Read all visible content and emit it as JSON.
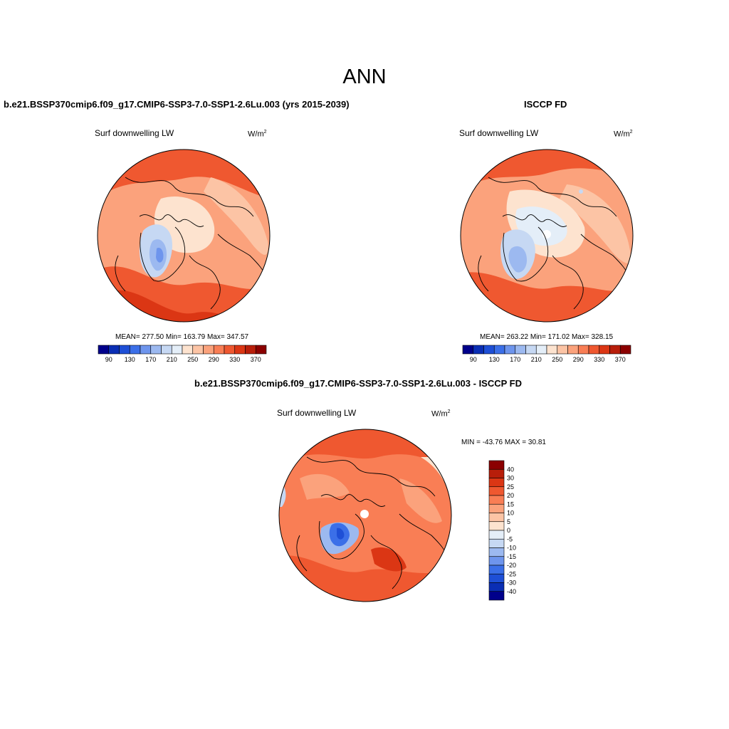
{
  "figure": {
    "title": "ANN"
  },
  "panels": [
    {
      "id": "model",
      "title": "b.e21.BSSP370cmip6.f09_g17.CMIP6-SSP3-7.0-SSP1-2.6Lu.003 (yrs 2015-2039)",
      "variable": "Surf downwelling LW",
      "units_base": "W/m",
      "units_exp": "2",
      "stats": "MEAN= 277.50  Min= 163.79  Max= 347.57"
    },
    {
      "id": "obs",
      "title": "ISCCP FD",
      "variable": "Surf downwelling LW",
      "units_base": "W/m",
      "units_exp": "2",
      "stats": "MEAN= 263.22  Min= 171.02  Max= 328.15"
    },
    {
      "id": "diff",
      "title": "b.e21.BSSP370cmip6.f09_g17.CMIP6-SSP3-7.0-SSP1-2.6Lu.003 - ISCCP FD",
      "variable": "Surf downwelling LW",
      "units_base": "W/m",
      "units_exp": "2",
      "stats": "MIN = -43.76 MAX =  30.81"
    }
  ],
  "colorbar_abs": {
    "tick_labels": [
      "90",
      "130",
      "170",
      "210",
      "250",
      "290",
      "330",
      "370"
    ],
    "colors": [
      "#00008b",
      "#0a2eb4",
      "#1e4fd6",
      "#3b6fe8",
      "#6e95ed",
      "#9cb9f0",
      "#c6d8f3",
      "#e4eef8",
      "#fde3cf",
      "#fcc4a5",
      "#fba27c",
      "#f97e55",
      "#ef5830",
      "#db3614",
      "#b81e0a",
      "#8b0000"
    ]
  },
  "colorbar_diff": {
    "tick_labels": [
      "40",
      "30",
      "25",
      "20",
      "15",
      "10",
      "5",
      "0",
      "-5",
      "-10",
      "-15",
      "-20",
      "-25",
      "-30",
      "-40"
    ],
    "colors": [
      "#8b0000",
      "#b81e0a",
      "#db3614",
      "#ef5830",
      "#f97e55",
      "#fba27c",
      "#fcc4a5",
      "#fde3cf",
      "#e4eef8",
      "#c6d8f3",
      "#9cb9f0",
      "#6e95ed",
      "#3b6fe8",
      "#1e4fd6",
      "#0a2eb4",
      "#00008b"
    ]
  }
}
